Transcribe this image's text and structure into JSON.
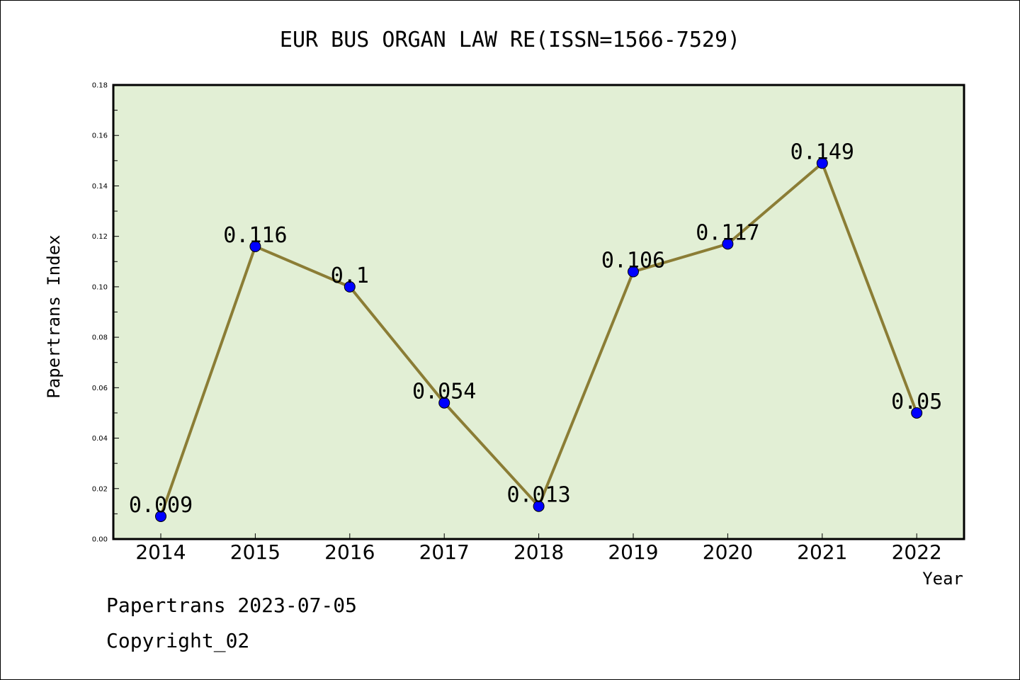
{
  "chart_data": {
    "type": "line",
    "title": "EUR BUS ORGAN LAW RE(ISSN=1566-7529)",
    "xlabel": "Year",
    "ylabel": "Papertrans Index",
    "categories": [
      "2014",
      "2015",
      "2016",
      "2017",
      "2018",
      "2019",
      "2020",
      "2021",
      "2022"
    ],
    "values": [
      0.009,
      0.116,
      0.1,
      0.054,
      0.013,
      0.106,
      0.117,
      0.149,
      0.05
    ],
    "data_labels": [
      "0.009",
      "0.116",
      "0.1",
      "0.054",
      "0.013",
      "0.106",
      "0.117",
      "0.149",
      "0.05"
    ],
    "ylim": [
      0,
      0.18
    ],
    "yticks": [
      "0.00",
      "0.02",
      "0.04",
      "0.06",
      "0.08",
      "0.10",
      "0.12",
      "0.14",
      "0.16",
      "0.18"
    ],
    "grid": false,
    "legend": "none",
    "colors": {
      "plot_background": "#e2efd5",
      "line": "#8b7d35",
      "marker": "#0000ff"
    }
  },
  "footer": {
    "line1": "Papertrans 2023-07-05",
    "line2": "Copyright_02"
  }
}
